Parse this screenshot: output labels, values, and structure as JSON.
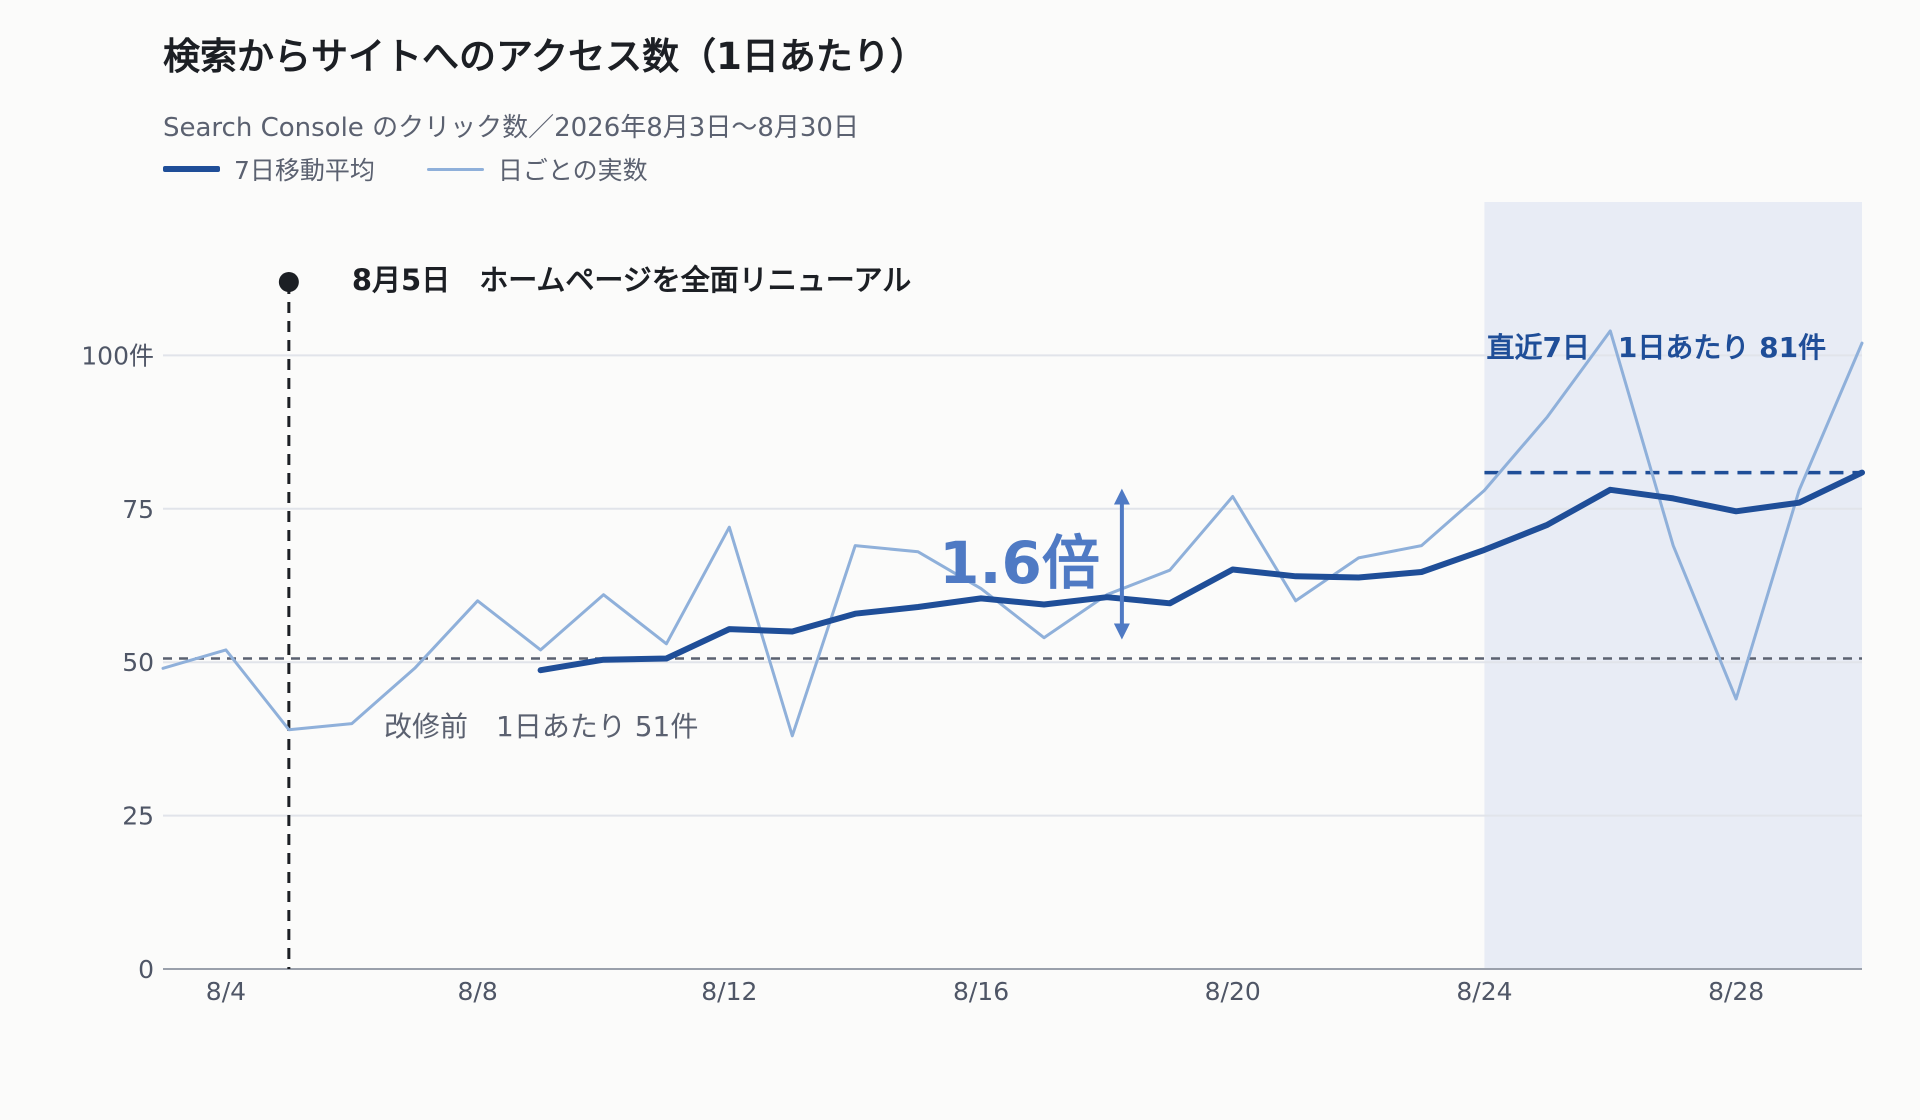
{
  "header": {
    "title": "検索からサイトへのアクセス数（1日あたり）",
    "subtitle": "Search Console のクリック数／2026年8月3日〜8月30日"
  },
  "legend": [
    {
      "label": "7日移動平均",
      "style": "thick",
      "color": "#1f4e98"
    },
    {
      "label": "日ごとの実数",
      "style": "thin",
      "color": "#8fb0da"
    }
  ],
  "chart_data": {
    "type": "line",
    "x_dates": [
      "8/3",
      "8/4",
      "8/5",
      "8/6",
      "8/7",
      "8/8",
      "8/9",
      "8/10",
      "8/11",
      "8/12",
      "8/13",
      "8/14",
      "8/15",
      "8/16",
      "8/17",
      "8/18",
      "8/19",
      "8/20",
      "8/21",
      "8/22",
      "8/23",
      "8/24",
      "8/25",
      "8/26",
      "8/27",
      "8/28",
      "8/29",
      "8/30"
    ],
    "x_ticks": [
      "8/4",
      "8/8",
      "8/12",
      "8/16",
      "8/20",
      "8/24",
      "8/28"
    ],
    "y_ticks": [
      0,
      25,
      50,
      75,
      100
    ],
    "y_tick_labels": [
      "0",
      "25",
      "50",
      "75",
      "100件"
    ],
    "ylim": [
      0,
      125
    ],
    "grid": "horizontal",
    "series": [
      {
        "name": "日ごとの実数",
        "color": "#8fb0da",
        "values": [
          49,
          52,
          39,
          40,
          49,
          60,
          52,
          61,
          53,
          72,
          38,
          69,
          68,
          62,
          54,
          61,
          65,
          77,
          60,
          67,
          69,
          78,
          90,
          104,
          69,
          44,
          78,
          102
        ]
      },
      {
        "name": "7日移動平均",
        "color": "#1f4e98",
        "values": [
          null,
          null,
          null,
          null,
          null,
          null,
          48.7,
          50.4,
          50.6,
          55.4,
          55.0,
          57.9,
          59.0,
          60.4,
          59.4,
          60.6,
          59.6,
          65.1,
          64.0,
          63.8,
          64.7,
          68.3,
          72.4,
          78.1,
          76.7,
          74.6,
          76.0,
          80.9
        ]
      }
    ],
    "baseline": {
      "value": 50.6,
      "label": "改修前　1日あたり 51件",
      "color": "#5b6170"
    },
    "recent": {
      "value": 80.9,
      "from": "8/24",
      "to": "8/30",
      "label": "直近7日　1日あたり 81件",
      "color": "#1f4e98",
      "shade": "#e8ecf5"
    },
    "event": {
      "date": "8/5",
      "label": "8月5日　ホームページを全面リニューアル"
    },
    "ratio": {
      "label": "1.6倍",
      "at": "8/18",
      "color": "#4f7ac4"
    }
  }
}
